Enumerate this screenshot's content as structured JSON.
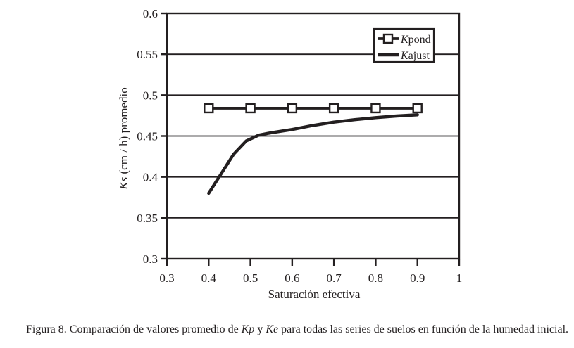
{
  "figure": {
    "caption": {
      "prefix": "Figura 8. Comparación de valores promedio de ",
      "var1": "Kp",
      "mid": " y ",
      "var2": "Ke",
      "suffix": " para todas las series de suelos en función de la humedad inicial."
    }
  },
  "chart_data": {
    "type": "line",
    "title": "",
    "xlabel": "Saturación efectiva",
    "ylabel": "Ks (cm / h) promedio",
    "ylabel_parts": {
      "italic": "Ks",
      "rest": " (cm / h) promedio"
    },
    "xlim": [
      0.3,
      1.0
    ],
    "ylim": [
      0.3,
      0.6
    ],
    "x_ticks": [
      0.3,
      0.4,
      0.5,
      0.6,
      0.7,
      0.8,
      0.9,
      1.0
    ],
    "x_tick_labels": [
      "0.3",
      "0.4",
      "0.5",
      "0.6",
      "0.7",
      "0.8",
      "0.9",
      "1"
    ],
    "y_ticks": [
      0.6,
      0.55,
      0.5,
      0.45,
      0.4,
      0.35,
      0.3
    ],
    "y_tick_labels": [
      "0.6",
      "0.55",
      "0.5",
      "0.45",
      "0.4",
      "0.35",
      "0.3"
    ],
    "grid": "horizontal",
    "legend_position": "top-right-inside",
    "line_color": "#231f20",
    "background_color": "#ffffff",
    "series": [
      {
        "name": "Kpond",
        "name_parts": {
          "italic": "K",
          "rest": "pond"
        },
        "marker": "open-square",
        "x": [
          0.4,
          0.5,
          0.6,
          0.7,
          0.8,
          0.9
        ],
        "values": [
          0.484,
          0.484,
          0.484,
          0.484,
          0.484,
          0.484
        ]
      },
      {
        "name": "Kajust",
        "name_parts": {
          "italic": "K",
          "rest": "ajust"
        },
        "marker": "none",
        "x": [
          0.4,
          0.43,
          0.46,
          0.49,
          0.52,
          0.55,
          0.6,
          0.65,
          0.7,
          0.75,
          0.8,
          0.85,
          0.9
        ],
        "values": [
          0.38,
          0.404,
          0.428,
          0.444,
          0.451,
          0.454,
          0.458,
          0.463,
          0.467,
          0.47,
          0.4725,
          0.4745,
          0.476
        ]
      }
    ]
  }
}
